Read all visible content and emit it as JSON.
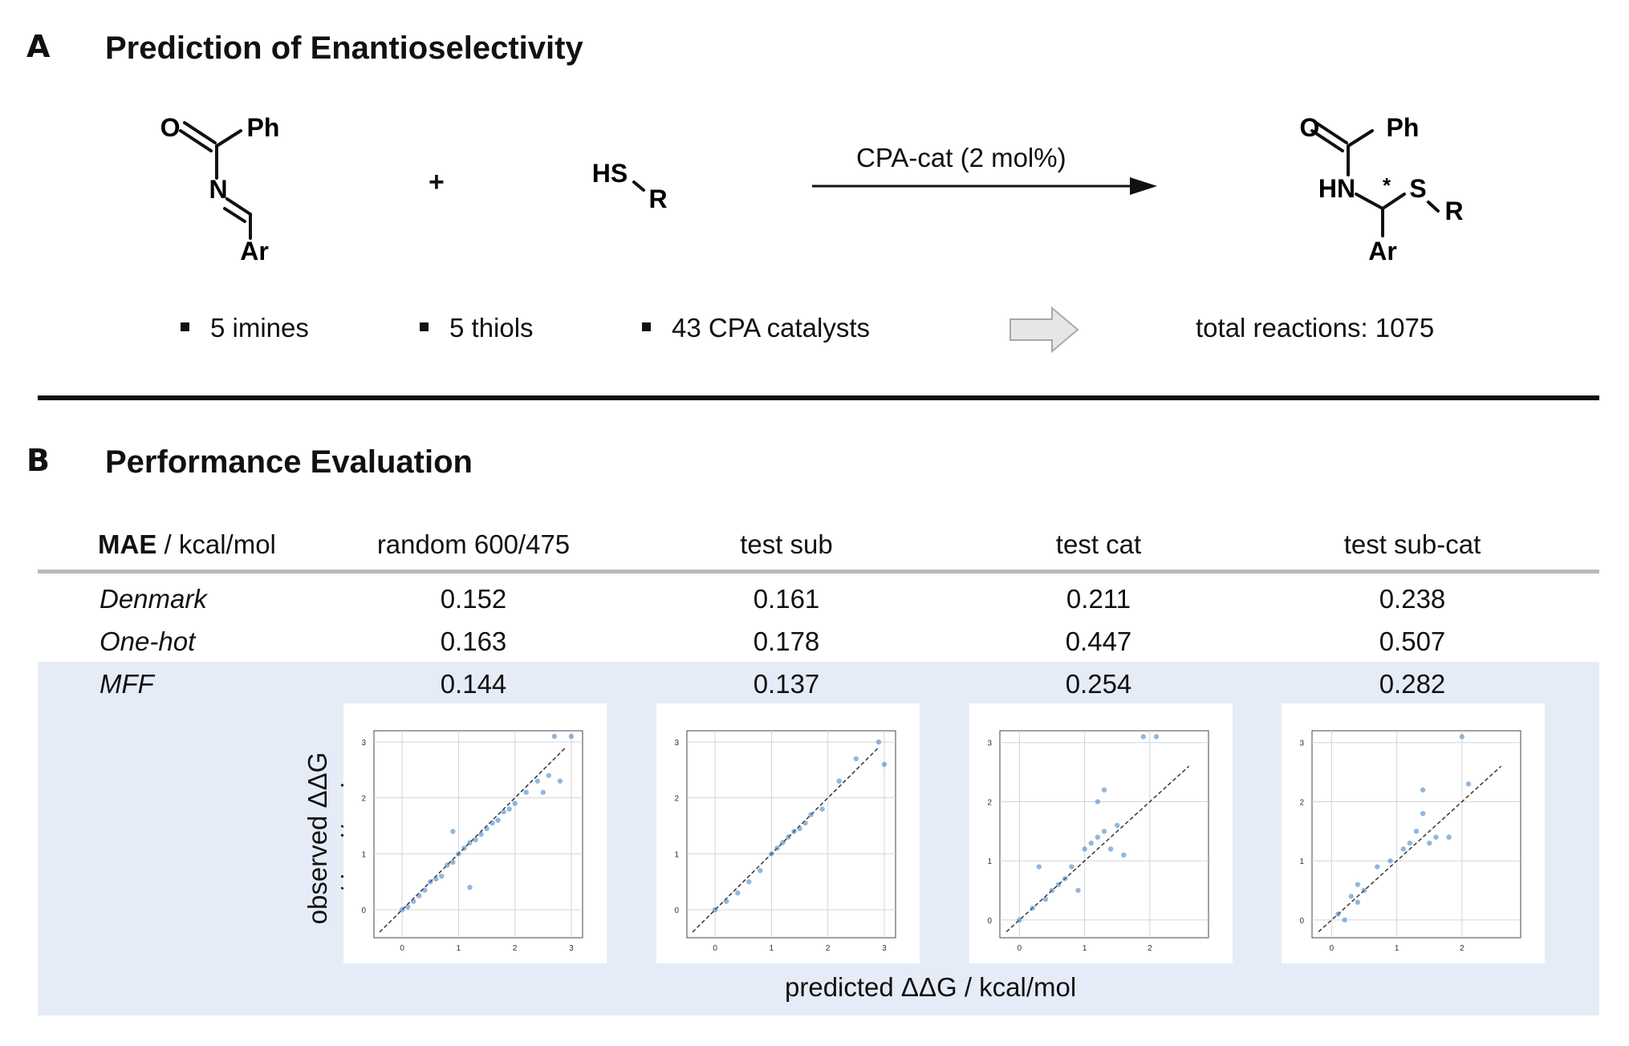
{
  "panelA": {
    "letter": "A",
    "title": "Prediction of Enantioselectivity",
    "imine": {
      "atoms": [
        "O",
        "Ph",
        "N",
        "Ar"
      ]
    },
    "plus": "+",
    "thiol": {
      "hs": "HS",
      "r": "R"
    },
    "arrow_label": "CPA-cat (2 mol%)",
    "product": {
      "atoms": [
        "O",
        "Ph",
        "HN",
        "*",
        "S",
        "R",
        "Ar"
      ]
    },
    "bullets": [
      "5 imines",
      "5 thiols",
      "43 CPA catalysts"
    ],
    "total": "total reactions: 1075"
  },
  "panelB": {
    "letter": "B",
    "title": "Performance Evaluation",
    "table": {
      "header_bold": "MAE",
      "header_unit": "/ kcal/mol",
      "columns": [
        "random 600/475",
        "test sub",
        "test cat",
        "test sub-cat"
      ],
      "rows": [
        {
          "name": "Denmark",
          "values": [
            "0.152",
            "0.161",
            "0.211",
            "0.238"
          ]
        },
        {
          "name": "One-hot",
          "values": [
            "0.163",
            "0.178",
            "0.447",
            "0.507"
          ]
        },
        {
          "name": "MFF",
          "values": [
            "0.144",
            "0.137",
            "0.254",
            "0.282"
          ]
        }
      ]
    },
    "ylabel_line1": "observed ΔΔG",
    "ylabel_line2": "/ kcal/mol",
    "xlabel": "predicted ΔΔG / kcal/mol",
    "highlight_color": "#e6ecf7",
    "point_color": "#3b7bbf"
  },
  "chart_data": [
    {
      "type": "scatter",
      "subset": "random 600/475",
      "xlim": [
        -0.5,
        3.2
      ],
      "ylim": [
        -0.5,
        3.2
      ],
      "xticks": [
        "0",
        "1",
        "2",
        "3"
      ],
      "yticks": [
        "0",
        "1",
        "2",
        "3"
      ],
      "points": [
        [
          0,
          0
        ],
        [
          0.1,
          0.05
        ],
        [
          0.2,
          0.15
        ],
        [
          0.3,
          0.25
        ],
        [
          0.4,
          0.35
        ],
        [
          0.5,
          0.5
        ],
        [
          0.6,
          0.55
        ],
        [
          0.7,
          0.6
        ],
        [
          0.8,
          0.8
        ],
        [
          0.9,
          0.85
        ],
        [
          1.0,
          1.0
        ],
        [
          1.1,
          1.1
        ],
        [
          1.2,
          1.2
        ],
        [
          1.3,
          1.25
        ],
        [
          1.4,
          1.35
        ],
        [
          1.5,
          1.45
        ],
        [
          1.6,
          1.55
        ],
        [
          1.7,
          1.6
        ],
        [
          1.8,
          1.75
        ],
        [
          1.9,
          1.8
        ],
        [
          2.0,
          1.9
        ],
        [
          2.2,
          2.1
        ],
        [
          2.4,
          2.3
        ],
        [
          2.6,
          2.4
        ],
        [
          2.8,
          2.3
        ],
        [
          3.0,
          3.1
        ],
        [
          2.7,
          3.1
        ],
        [
          2.5,
          2.1
        ],
        [
          1.2,
          0.4
        ],
        [
          0.9,
          1.4
        ]
      ]
    },
    {
      "type": "scatter",
      "subset": "test sub",
      "xlim": [
        -0.5,
        3.2
      ],
      "ylim": [
        -0.5,
        3.2
      ],
      "xticks": [
        "0",
        "1",
        "2",
        "3"
      ],
      "yticks": [
        "0",
        "1",
        "2",
        "3"
      ],
      "points": [
        [
          0,
          0
        ],
        [
          0.2,
          0.15
        ],
        [
          0.4,
          0.3
        ],
        [
          0.6,
          0.5
        ],
        [
          0.8,
          0.7
        ],
        [
          1.0,
          1.0
        ],
        [
          1.1,
          1.1
        ],
        [
          1.2,
          1.2
        ],
        [
          1.3,
          1.3
        ],
        [
          1.4,
          1.4
        ],
        [
          1.5,
          1.45
        ],
        [
          1.6,
          1.55
        ],
        [
          1.7,
          1.7
        ],
        [
          1.9,
          1.8
        ],
        [
          2.2,
          2.3
        ],
        [
          2.5,
          2.7
        ],
        [
          2.9,
          3.0
        ],
        [
          3.0,
          2.6
        ]
      ]
    },
    {
      "type": "scatter",
      "subset": "test cat",
      "xlim": [
        -0.3,
        2.9
      ],
      "ylim": [
        -0.3,
        3.2
      ],
      "xticks": [
        "0",
        "1",
        "2"
      ],
      "yticks": [
        "0",
        "1",
        "2",
        "3"
      ],
      "points": [
        [
          0,
          0
        ],
        [
          0.2,
          0.2
        ],
        [
          0.4,
          0.35
        ],
        [
          0.5,
          0.5
        ],
        [
          0.6,
          0.6
        ],
        [
          0.7,
          0.7
        ],
        [
          0.8,
          0.9
        ],
        [
          1.0,
          1.2
        ],
        [
          1.1,
          1.3
        ],
        [
          1.2,
          1.4
        ],
        [
          1.3,
          1.5
        ],
        [
          1.4,
          1.2
        ],
        [
          1.5,
          1.6
        ],
        [
          1.2,
          2.0
        ],
        [
          1.3,
          2.2
        ],
        [
          1.9,
          3.1
        ],
        [
          2.1,
          3.1
        ],
        [
          0.3,
          0.9
        ],
        [
          0.9,
          0.5
        ],
        [
          1.6,
          1.1
        ]
      ]
    },
    {
      "type": "scatter",
      "subset": "test sub-cat",
      "xlim": [
        -0.3,
        2.9
      ],
      "ylim": [
        -0.3,
        3.2
      ],
      "xticks": [
        "0",
        "1",
        "2"
      ],
      "yticks": [
        "0",
        "1",
        "2",
        "3"
      ],
      "points": [
        [
          0.1,
          0.1
        ],
        [
          0.3,
          0.4
        ],
        [
          0.4,
          0.6
        ],
        [
          0.5,
          0.5
        ],
        [
          0.7,
          0.9
        ],
        [
          0.9,
          1.0
        ],
        [
          1.1,
          1.2
        ],
        [
          1.2,
          1.3
        ],
        [
          1.3,
          1.5
        ],
        [
          1.4,
          1.8
        ],
        [
          1.4,
          2.2
        ],
        [
          1.5,
          1.3
        ],
        [
          1.6,
          1.4
        ],
        [
          1.8,
          1.4
        ],
        [
          2.0,
          3.1
        ],
        [
          2.1,
          2.3
        ],
        [
          0.4,
          0.3
        ],
        [
          0.2,
          0.0
        ]
      ]
    }
  ]
}
